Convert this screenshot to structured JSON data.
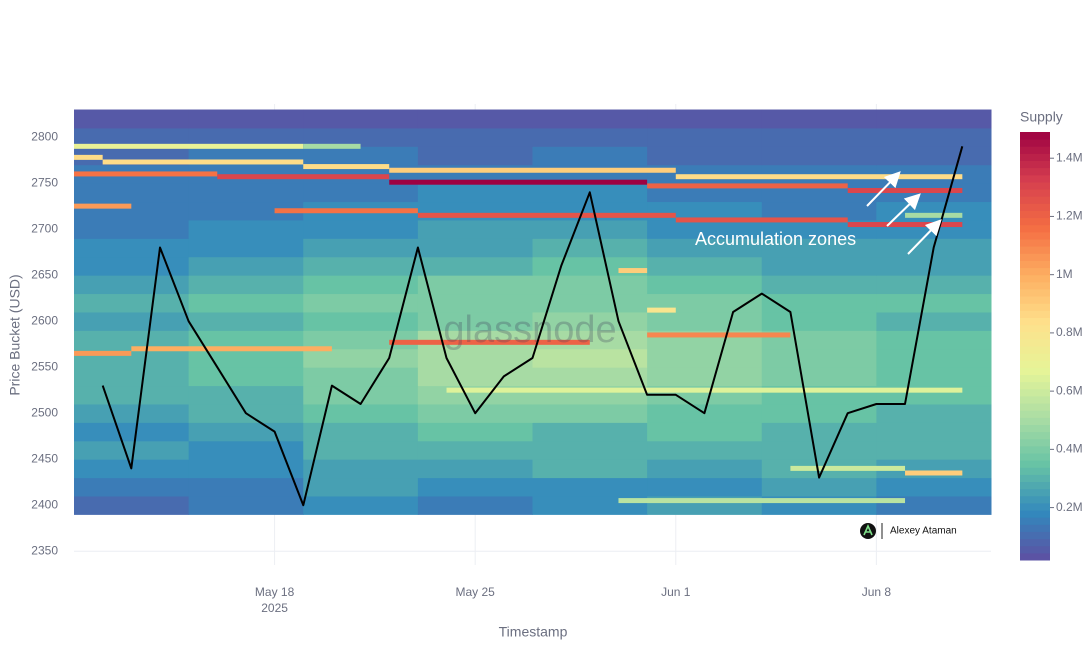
{
  "chart_data": {
    "type": "heatmap",
    "y_axis_title": "Price Bucket (USD)",
    "x_axis_title": "Timestamp",
    "colorbar_title": "Supply",
    "annotation": "Accumulation zones",
    "watermark": "glassnode",
    "credit": "Alexey Ataman",
    "xlim": [
      "2025-05-11",
      "2025-06-12"
    ],
    "xticks": [
      {
        "value": "2025-05-18",
        "label": "May 18\n2025"
      },
      {
        "value": "2025-05-25",
        "label": "May 25"
      },
      {
        "value": "2025-06-01",
        "label": "Jun 1"
      },
      {
        "value": "2025-06-08",
        "label": "Jun 8"
      }
    ],
    "ylim": [
      2335,
      2836
    ],
    "yticks": [
      2350,
      2400,
      2450,
      2500,
      2550,
      2600,
      2650,
      2700,
      2750,
      2800
    ],
    "zlim": [
      0.02,
      1.49
    ],
    "zticks": [
      {
        "value": 0.2,
        "label": "0.2M"
      },
      {
        "value": 0.4,
        "label": "0.4M"
      },
      {
        "value": 0.6,
        "label": "0.6M"
      },
      {
        "value": 0.8,
        "label": "0.8M"
      },
      {
        "value": 1,
        "label": "1M"
      },
      {
        "value": 1.2,
        "label": "1.2M"
      },
      {
        "value": 1.4,
        "label": "1.4M"
      }
    ],
    "colorscale": [
      "#5e4fa2",
      "#3288bd",
      "#66c2a5",
      "#abdda4",
      "#e6f598",
      "#fee08b",
      "#fdae61",
      "#f46d43",
      "#d53e4f",
      "#9e0142"
    ],
    "bucket_size": 20,
    "x": [
      "2025-05-11",
      "2025-05-15",
      "2025-05-19",
      "2025-05-23",
      "2025-05-27",
      "2025-05-31",
      "2025-06-04",
      "2025-06-08"
    ],
    "y": [
      2400,
      2420,
      2440,
      2460,
      2480,
      2500,
      2520,
      2540,
      2560,
      2580,
      2600,
      2620,
      2640,
      2660,
      2680,
      2700,
      2720,
      2740,
      2760,
      2780,
      2800,
      2820
    ],
    "z": [
      [
        0.1,
        0.15,
        0.2,
        0.15,
        0.2,
        0.25,
        0.2,
        0.15
      ],
      [
        0.15,
        0.15,
        0.25,
        0.2,
        0.2,
        0.2,
        0.25,
        0.2
      ],
      [
        0.2,
        0.2,
        0.25,
        0.25,
        0.3,
        0.25,
        0.3,
        0.25
      ],
      [
        0.25,
        0.2,
        0.3,
        0.3,
        0.3,
        0.3,
        0.3,
        0.3
      ],
      [
        0.2,
        0.25,
        0.3,
        0.35,
        0.3,
        0.35,
        0.3,
        0.3
      ],
      [
        0.25,
        0.3,
        0.35,
        0.4,
        0.4,
        0.35,
        0.35,
        0.3
      ],
      [
        0.3,
        0.3,
        0.4,
        0.45,
        0.45,
        0.4,
        0.35,
        0.35
      ],
      [
        0.3,
        0.35,
        0.4,
        0.5,
        0.5,
        0.45,
        0.4,
        0.35
      ],
      [
        0.3,
        0.35,
        0.45,
        0.5,
        0.55,
        0.45,
        0.4,
        0.35
      ],
      [
        0.3,
        0.35,
        0.4,
        0.5,
        0.5,
        0.45,
        0.4,
        0.35
      ],
      [
        0.25,
        0.3,
        0.35,
        0.4,
        0.45,
        0.4,
        0.35,
        0.3
      ],
      [
        0.3,
        0.35,
        0.4,
        0.4,
        0.4,
        0.4,
        0.35,
        0.35
      ],
      [
        0.25,
        0.3,
        0.35,
        0.4,
        0.4,
        0.35,
        0.3,
        0.3
      ],
      [
        0.2,
        0.25,
        0.3,
        0.3,
        0.35,
        0.3,
        0.25,
        0.25
      ],
      [
        0.2,
        0.2,
        0.25,
        0.25,
        0.3,
        0.25,
        0.25,
        0.25
      ],
      [
        0.15,
        0.2,
        0.2,
        0.25,
        0.25,
        0.2,
        0.2,
        0.2
      ],
      [
        0.15,
        0.15,
        0.2,
        0.2,
        0.2,
        0.2,
        0.15,
        0.2
      ],
      [
        0.15,
        0.15,
        0.15,
        0.2,
        0.2,
        0.15,
        0.15,
        0.15
      ],
      [
        0.15,
        0.15,
        0.15,
        0.15,
        0.15,
        0.15,
        0.15,
        0.15
      ],
      [
        0.1,
        0.15,
        0.15,
        0.1,
        0.15,
        0.1,
        0.1,
        0.1
      ],
      [
        0.1,
        0.1,
        0.1,
        0.1,
        0.1,
        0.1,
        0.1,
        0.1
      ],
      [
        0.05,
        0.05,
        0.05,
        0.05,
        0.05,
        0.05,
        0.05,
        0.05
      ]
    ],
    "bands": [
      {
        "y": 2790,
        "x": [
          "2025-05-11",
          "2025-05-19"
        ],
        "value": 0.7
      },
      {
        "y": 2790,
        "x": [
          "2025-05-19",
          "2025-05-21"
        ],
        "value": 0.5
      },
      {
        "y": 2778,
        "x": [
          "2025-05-11",
          "2025-05-12"
        ],
        "value": 0.85
      },
      {
        "y": 2773,
        "x": [
          "2025-05-12",
          "2025-05-19"
        ],
        "value": 0.85
      },
      {
        "y": 2768,
        "x": [
          "2025-05-19",
          "2025-05-22"
        ],
        "value": 0.85
      },
      {
        "y": 2760,
        "x": [
          "2025-05-11",
          "2025-05-16"
        ],
        "value": 1.15
      },
      {
        "y": 2757,
        "x": [
          "2025-05-16",
          "2025-05-22"
        ],
        "value": 1.3
      },
      {
        "y": 2764,
        "x": [
          "2025-05-22",
          "2025-06-01"
        ],
        "value": 0.9
      },
      {
        "y": 2757,
        "x": [
          "2025-06-01",
          "2025-06-11"
        ],
        "value": 0.85
      },
      {
        "y": 2751,
        "x": [
          "2025-05-22",
          "2025-05-31"
        ],
        "value": 1.49
      },
      {
        "y": 2747,
        "x": [
          "2025-05-31",
          "2025-06-07"
        ],
        "value": 1.2
      },
      {
        "y": 2742,
        "x": [
          "2025-06-07",
          "2025-06-11"
        ],
        "value": 1.3
      },
      {
        "y": 2725,
        "x": [
          "2025-05-11",
          "2025-05-13"
        ],
        "value": 1.05
      },
      {
        "y": 2720,
        "x": [
          "2025-05-18",
          "2025-05-23"
        ],
        "value": 1.15
      },
      {
        "y": 2715,
        "x": [
          "2025-05-23",
          "2025-06-01"
        ],
        "value": 1.25
      },
      {
        "y": 2710,
        "x": [
          "2025-06-01",
          "2025-06-07"
        ],
        "value": 1.25
      },
      {
        "y": 2705,
        "x": [
          "2025-06-07",
          "2025-06-11"
        ],
        "value": 1.3
      },
      {
        "y": 2715,
        "x": [
          "2025-06-09",
          "2025-06-11"
        ],
        "value": 0.5
      },
      {
        "y": 2655,
        "x": [
          "2025-05-30",
          "2025-05-31"
        ],
        "value": 0.9
      },
      {
        "y": 2612,
        "x": [
          "2025-05-31",
          "2025-06-01"
        ],
        "value": 0.8
      },
      {
        "y": 2585,
        "x": [
          "2025-05-31",
          "2025-06-05"
        ],
        "value": 1.1
      },
      {
        "y": 2577,
        "x": [
          "2025-05-22",
          "2025-05-29"
        ],
        "value": 1.2
      },
      {
        "y": 2570,
        "x": [
          "2025-05-13",
          "2025-05-20"
        ],
        "value": 1.0
      },
      {
        "y": 2565,
        "x": [
          "2025-05-11",
          "2025-05-13"
        ],
        "value": 1.05
      },
      {
        "y": 2525,
        "x": [
          "2025-05-24",
          "2025-06-11"
        ],
        "value": 0.65
      },
      {
        "y": 2440,
        "x": [
          "2025-06-05",
          "2025-06-09"
        ],
        "value": 0.6
      },
      {
        "y": 2435,
        "x": [
          "2025-06-09",
          "2025-06-11"
        ],
        "value": 0.9
      },
      {
        "y": 2405,
        "x": [
          "2025-05-30",
          "2025-06-09"
        ],
        "value": 0.55
      }
    ],
    "line": {
      "color": "#000000",
      "x": [
        "2025-05-12",
        "2025-05-13",
        "2025-05-14",
        "2025-05-15",
        "2025-05-16",
        "2025-05-17",
        "2025-05-18",
        "2025-05-19",
        "2025-05-20",
        "2025-05-21",
        "2025-05-22",
        "2025-05-23",
        "2025-05-24",
        "2025-05-25",
        "2025-05-26",
        "2025-05-27",
        "2025-05-28",
        "2025-05-29",
        "2025-05-30",
        "2025-05-31",
        "2025-06-01",
        "2025-06-02",
        "2025-06-03",
        "2025-06-04",
        "2025-06-05",
        "2025-06-06",
        "2025-06-07",
        "2025-06-08",
        "2025-06-09",
        "2025-06-10",
        "2025-06-11"
      ],
      "values": [
        2530,
        2440,
        2680,
        2600,
        2550,
        2500,
        2480,
        2400,
        2530,
        2510,
        2560,
        2680,
        2560,
        2500,
        2540,
        2560,
        2660,
        2740,
        2600,
        2520,
        2520,
        2500,
        2610,
        2630,
        2610,
        2430,
        2500,
        2510,
        2510,
        2680,
        2790
      ]
    }
  }
}
